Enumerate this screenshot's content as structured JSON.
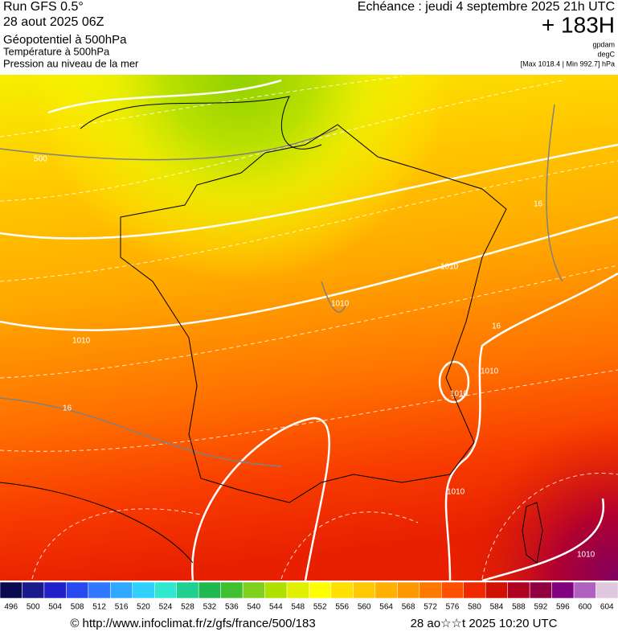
{
  "header": {
    "run": "Run GFS 0.5°",
    "date": "28 aout 2025 06Z",
    "layer1": "Géopotentiel à 500hPa",
    "layer2": "Température à 500hPa",
    "layer3": "Pression au niveau de la mer",
    "echeance": "Echéance : jeudi 4 septembre 2025 21h UTC",
    "offset": "+ 183H",
    "unit1": "gpdam",
    "unit2": "degC",
    "range": "[Max 1018.4 | Min 992.7] hPa"
  },
  "map": {
    "contour_labels": [
      "500",
      "1010",
      "1010",
      "1010",
      "1010",
      "16",
      "16",
      "16",
      "1010",
      "1010",
      "1010"
    ]
  },
  "colorbar": {
    "labels": [
      496,
      500,
      504,
      508,
      512,
      516,
      520,
      524,
      528,
      532,
      536,
      540,
      544,
      548,
      552,
      556,
      560,
      564,
      568,
      572,
      576,
      580,
      584,
      588,
      592,
      596,
      600,
      604
    ],
    "colors": [
      "#0a0a50",
      "#1a1a8c",
      "#2020c8",
      "#2848f0",
      "#3078ff",
      "#30a8ff",
      "#30d0ff",
      "#30e8d0",
      "#20d090",
      "#20b850",
      "#40c030",
      "#80d020",
      "#b0e000",
      "#e0f000",
      "#ffff00",
      "#ffe000",
      "#ffc800",
      "#ffb000",
      "#ff9800",
      "#ff7800",
      "#ff5000",
      "#f02800",
      "#d01000",
      "#b00020",
      "#900040",
      "#800080",
      "#b060c0",
      "#e0c8e0"
    ]
  },
  "footer": {
    "url": "© http://www.infoclimat.fr/z/gfs/france/500/183",
    "timestamp": "28 ao☆☆t 2025 10:20 UTC"
  }
}
